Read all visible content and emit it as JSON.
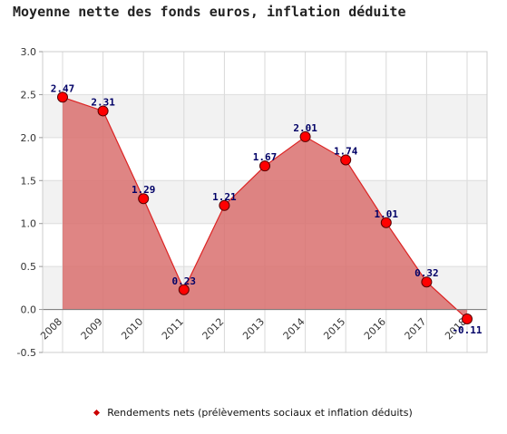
{
  "chart_data": {
    "type": "area",
    "title": "Moyenne nette des fonds euros, inflation déduite",
    "categories": [
      "2008",
      "2009",
      "2010",
      "2011",
      "2012",
      "2013",
      "2014",
      "2015",
      "2016",
      "2017",
      "2018"
    ],
    "series": [
      {
        "name": "Rendements nets (prélèvements sociaux et inflation déduits)",
        "values": [
          2.47,
          2.31,
          1.29,
          0.23,
          1.21,
          1.67,
          2.01,
          1.74,
          1.01,
          0.32,
          -0.11
        ],
        "labels": [
          "2.47",
          "2.31",
          "1.29",
          "0.23",
          "1.21",
          "1.67",
          "2.01",
          "1.74",
          "1.01",
          "0.32",
          "-0.11"
        ],
        "color": "#dd2222",
        "fill": "#d9706f",
        "marker_color": "#ff0000"
      }
    ],
    "y_ticks": [
      "3.0",
      "2.5",
      "2.0",
      "1.5",
      "1.0",
      "0.5",
      "0.0",
      "-0.5"
    ],
    "ylim": [
      -0.5,
      3.0
    ],
    "xlabel": "",
    "ylabel": "",
    "grid": true,
    "legend_position": "bottom-center"
  }
}
